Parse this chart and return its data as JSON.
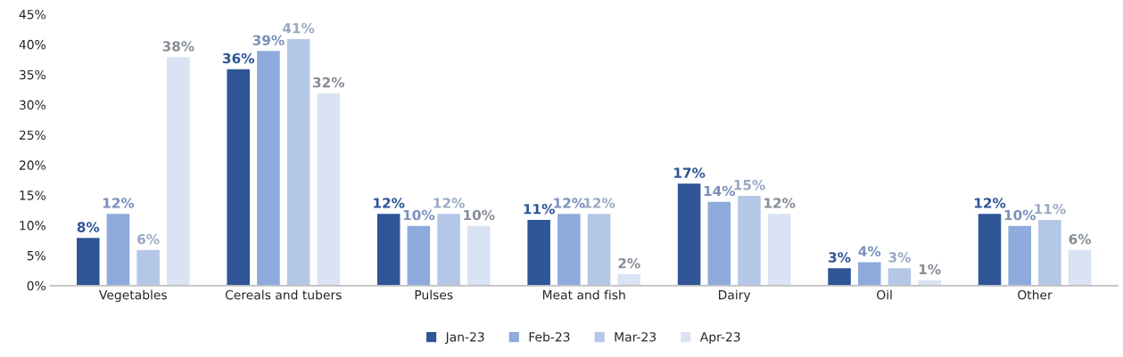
{
  "chart_data": {
    "type": "bar",
    "categories": [
      "Vegetables",
      "Cereals and tubers",
      "Pulses",
      "Meat and fish",
      "Dairy",
      "Oil",
      "Other"
    ],
    "series": [
      {
        "name": "Jan-23",
        "color": "#2f5597",
        "values": [
          8,
          36,
          12,
          11,
          17,
          3,
          12
        ],
        "value_labels": [
          "8%",
          "36%",
          "12%",
          "11%",
          "17%",
          "3%",
          "12%"
        ]
      },
      {
        "name": "Feb-23",
        "color": "#8faadc",
        "values": [
          12,
          39,
          10,
          12,
          14,
          4,
          10
        ],
        "value_labels": [
          "12%",
          "39%",
          "10%",
          "12%",
          "14%",
          "4%",
          "10%"
        ]
      },
      {
        "name": "Mar-23",
        "color": "#b4c7e7",
        "values": [
          6,
          41,
          12,
          12,
          15,
          3,
          11
        ],
        "value_labels": [
          "6%",
          "41%",
          "12%",
          "12%",
          "15%",
          "3%",
          "11%"
        ]
      },
      {
        "name": "Apr-23",
        "color": "#dae3f3",
        "values": [
          38,
          32,
          10,
          2,
          12,
          1,
          6
        ],
        "value_labels": [
          "38%",
          "32%",
          "10%",
          "2%",
          "12%",
          "1%",
          "6%"
        ]
      }
    ],
    "ylim": [
      0,
      45
    ],
    "yticks": [
      {
        "value": 0,
        "label": "0%"
      },
      {
        "value": 5,
        "label": "5%"
      },
      {
        "value": 10,
        "label": "10%"
      },
      {
        "value": 15,
        "label": "15%"
      },
      {
        "value": 20,
        "label": "20%"
      },
      {
        "value": 25,
        "label": "25%"
      },
      {
        "value": 30,
        "label": "30%"
      },
      {
        "value": 35,
        "label": "35%"
      },
      {
        "value": 40,
        "label": "40%"
      },
      {
        "value": 45,
        "label": "45%"
      }
    ],
    "grid": false,
    "legend": "bottom"
  }
}
